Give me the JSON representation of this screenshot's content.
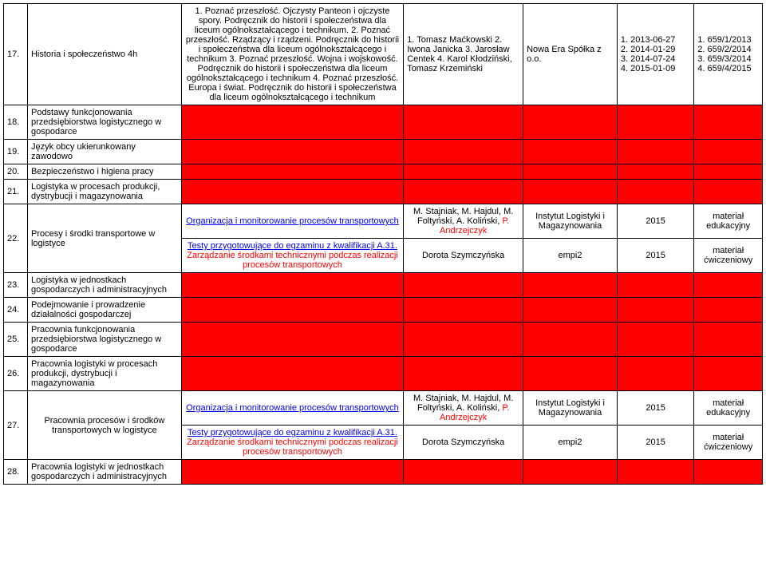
{
  "colors": {
    "highlight_bg": "#ff0000",
    "highlight_text": "#ff0000",
    "link": "#0000ee",
    "border": "#000000",
    "background": "#ffffff"
  },
  "rows": [
    {
      "num": "17.",
      "subject": "Historia i społeczeństwo 4h",
      "description": "1. Poznać przeszłość. Ojczysty Panteon i ojczyste spory. Podręcznik do historii i społeczeństwa dla liceum ogólnokształcącego i technikum. 2. Poznać przeszłość. Rządzący i rządzeni. Podręcznik do historii i społeczeństwa dla liceum ogólnokształcącego i technikum 3. Poznać przeszłość. Wojna i wojskowość. Podręcznik do historii i społeczeństwa dla liceum ogólnokształcącego i technikum 4. Poznać przeszłość. Europa i świat. Podręcznik do historii i społeczeństwa dla liceum ogólnokształcącego i technikum",
      "authors": "1. Tomasz Maćkowski 2. Iwona Janicka 3. Jarosław Centek 4. Karol Kłodziński, Tomasz Krzemiński",
      "publisher": "Nowa Era Spółka z o.o.",
      "dates": "1. 2013-06-27\n2. 2014-01-29\n3. 2014-07-24\n4. 2015-01-09",
      "codes": "1. 659/1/2013\n2. 659/2/2014\n3. 659/3/2014\n4. 659/4/2015"
    },
    {
      "num": "18.",
      "subject": "Podstawy funkcjonowania przedsiębiorstwa logistycznego w gospodarce",
      "red": true
    },
    {
      "num": "19.",
      "subject": "Język obcy ukierunkowany zawodowo",
      "red": true
    },
    {
      "num": "20.",
      "subject": "Bezpieczeństwo i higiena pracy",
      "red": true
    },
    {
      "num": "21.",
      "subject": "Logistyka w procesach produkcji, dystrybucji i magazynowania",
      "red": true
    },
    {
      "num": "22.",
      "subject": "Procesy i środki transportowe w logistyce",
      "sub": [
        {
          "desc_link": "Organizacja i monitorowanie procesów transportowych",
          "authors": "M. Stajniak, M. Hajdul, M. Foltyński, A. Koliński,",
          "authors_red": " P. Andrzejczyk",
          "publisher": "Instytut Logistyki i Magazynowania",
          "dates": "2015",
          "codes": "materiał edukacyjny"
        },
        {
          "desc_link": "Testy przygotowujące do egzaminu z kwalifikacji A.31.",
          "desc_red": " Zarządzanie środkami technicznymi podczas realizacji procesów transportowych",
          "authors": "Dorota Szymczyńska",
          "publisher": "empi2",
          "dates": "2015",
          "codes": "materiał ćwiczeniowy"
        }
      ]
    },
    {
      "num": "23.",
      "subject": "Logistyka w jednostkach gospodarczych i administracyjnych",
      "red": true
    },
    {
      "num": "24.",
      "subject": "Podejmowanie i prowadzenie działalności gospodarczej",
      "red": true
    },
    {
      "num": "25.",
      "subject": "Pracownia funkcjonowania przedsiębiorstwa logistycznego w gospodarce",
      "red": true
    },
    {
      "num": "26.",
      "subject": "Pracownia logistyki w procesach produkcji, dystrybucji i magazynowania",
      "red": true
    },
    {
      "num": "27.",
      "subject": "Pracownia procesów i środków transportowych w logistyce",
      "subject_center": true,
      "sub": [
        {
          "desc_link": "Organizacja i monitorowanie procesów transportowych",
          "authors": "M. Stajniak, M. Hajdul, M. Foltyński, A. Koliński,",
          "authors_red": " P. Andrzejczyk",
          "publisher": "Instytut Logistyki i Magazynowania",
          "dates": "2015",
          "codes": "materiał edukacyjny"
        },
        {
          "desc_link": "Testy przygotowujące do egzaminu z kwalifikacji A.31.",
          "desc_red": " Zarządzanie środkami technicznymi podczas realizacji procesów transportowych",
          "authors": "Dorota Szymczyńska",
          "publisher": "empi2",
          "dates": "2015",
          "codes": "materiał ćwiczeniowy"
        }
      ]
    },
    {
      "num": "28.",
      "subject": "Pracownia logistyki w jednostkach gospodarczych i administracyjnych",
      "red": true
    }
  ]
}
